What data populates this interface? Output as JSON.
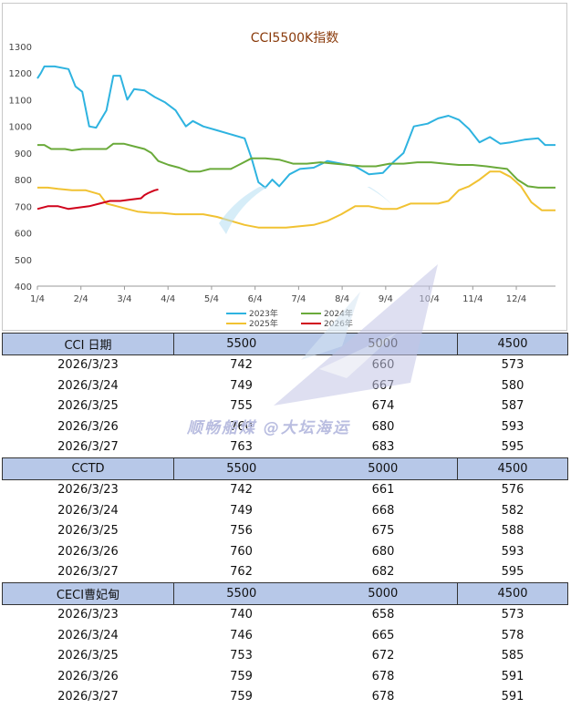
{
  "chart_data": {
    "type": "line",
    "title": "CCI5500K指数",
    "ylim": [
      400,
      1300
    ],
    "yticks": [
      400,
      500,
      600,
      700,
      800,
      900,
      1000,
      1100,
      1200,
      1300
    ],
    "xticks": [
      "1/4",
      "2/4",
      "3/4",
      "4/4",
      "5/4",
      "6/4",
      "7/4",
      "8/4",
      "9/4",
      "10/4",
      "11/4",
      "12/4"
    ],
    "legend_position": "bottom",
    "series": [
      {
        "name": "2023年",
        "color": "#2eb3e0",
        "points": [
          [
            0,
            1180
          ],
          [
            2,
            1200
          ],
          [
            4,
            1225
          ],
          [
            10,
            1225
          ],
          [
            18,
            1215
          ],
          [
            22,
            1150
          ],
          [
            26,
            1130
          ],
          [
            30,
            1000
          ],
          [
            34,
            995
          ],
          [
            40,
            1060
          ],
          [
            44,
            1190
          ],
          [
            48,
            1190
          ],
          [
            52,
            1100
          ],
          [
            56,
            1140
          ],
          [
            62,
            1135
          ],
          [
            68,
            1110
          ],
          [
            74,
            1090
          ],
          [
            80,
            1060
          ],
          [
            86,
            1000
          ],
          [
            90,
            1020
          ],
          [
            96,
            1000
          ],
          [
            104,
            985
          ],
          [
            112,
            970
          ],
          [
            120,
            955
          ],
          [
            124,
            880
          ],
          [
            128,
            790
          ],
          [
            132,
            770
          ],
          [
            136,
            800
          ],
          [
            140,
            775
          ],
          [
            146,
            820
          ],
          [
            152,
            840
          ],
          [
            160,
            845
          ],
          [
            168,
            870
          ],
          [
            176,
            860
          ],
          [
            184,
            850
          ],
          [
            192,
            820
          ],
          [
            200,
            825
          ],
          [
            206,
            865
          ],
          [
            212,
            900
          ],
          [
            218,
            1000
          ],
          [
            226,
            1010
          ],
          [
            232,
            1030
          ],
          [
            238,
            1040
          ],
          [
            244,
            1025
          ],
          [
            250,
            990
          ],
          [
            256,
            940
          ],
          [
            262,
            960
          ],
          [
            268,
            935
          ],
          [
            274,
            940
          ],
          [
            282,
            950
          ],
          [
            290,
            955
          ],
          [
            294,
            930
          ],
          [
            300,
            930
          ]
        ]
      },
      {
        "name": "2024年",
        "color": "#6aaa3a",
        "points": [
          [
            0,
            930
          ],
          [
            4,
            930
          ],
          [
            8,
            915
          ],
          [
            16,
            915
          ],
          [
            20,
            910
          ],
          [
            26,
            915
          ],
          [
            34,
            915
          ],
          [
            40,
            915
          ],
          [
            44,
            935
          ],
          [
            50,
            935
          ],
          [
            56,
            925
          ],
          [
            62,
            915
          ],
          [
            66,
            900
          ],
          [
            70,
            870
          ],
          [
            76,
            855
          ],
          [
            82,
            845
          ],
          [
            88,
            830
          ],
          [
            94,
            830
          ],
          [
            100,
            840
          ],
          [
            106,
            840
          ],
          [
            112,
            840
          ],
          [
            118,
            860
          ],
          [
            124,
            880
          ],
          [
            132,
            880
          ],
          [
            140,
            875
          ],
          [
            148,
            860
          ],
          [
            156,
            860
          ],
          [
            164,
            865
          ],
          [
            172,
            860
          ],
          [
            180,
            855
          ],
          [
            188,
            850
          ],
          [
            196,
            850
          ],
          [
            204,
            860
          ],
          [
            212,
            860
          ],
          [
            220,
            865
          ],
          [
            228,
            865
          ],
          [
            236,
            860
          ],
          [
            244,
            855
          ],
          [
            252,
            855
          ],
          [
            260,
            850
          ],
          [
            266,
            845
          ],
          [
            272,
            840
          ],
          [
            278,
            800
          ],
          [
            284,
            775
          ],
          [
            290,
            770
          ],
          [
            296,
            770
          ],
          [
            300,
            770
          ]
        ]
      },
      {
        "name": "2025年",
        "color": "#f1c232",
        "points": [
          [
            0,
            770
          ],
          [
            6,
            770
          ],
          [
            12,
            765
          ],
          [
            20,
            760
          ],
          [
            28,
            760
          ],
          [
            36,
            745
          ],
          [
            40,
            710
          ],
          [
            46,
            700
          ],
          [
            52,
            690
          ],
          [
            58,
            680
          ],
          [
            66,
            675
          ],
          [
            72,
            675
          ],
          [
            80,
            670
          ],
          [
            88,
            670
          ],
          [
            96,
            670
          ],
          [
            104,
            660
          ],
          [
            112,
            645
          ],
          [
            120,
            630
          ],
          [
            128,
            620
          ],
          [
            136,
            620
          ],
          [
            144,
            620
          ],
          [
            152,
            625
          ],
          [
            160,
            630
          ],
          [
            168,
            645
          ],
          [
            176,
            670
          ],
          [
            184,
            700
          ],
          [
            192,
            700
          ],
          [
            200,
            690
          ],
          [
            208,
            690
          ],
          [
            216,
            710
          ],
          [
            224,
            710
          ],
          [
            232,
            710
          ],
          [
            238,
            720
          ],
          [
            244,
            760
          ],
          [
            250,
            775
          ],
          [
            256,
            800
          ],
          [
            262,
            830
          ],
          [
            268,
            830
          ],
          [
            274,
            810
          ],
          [
            280,
            775
          ],
          [
            286,
            715
          ],
          [
            292,
            685
          ],
          [
            300,
            685
          ]
        ]
      },
      {
        "name": "2026年",
        "color": "#d0021b",
        "points": [
          [
            0,
            690
          ],
          [
            6,
            700
          ],
          [
            12,
            700
          ],
          [
            18,
            690
          ],
          [
            24,
            695
          ],
          [
            30,
            700
          ],
          [
            36,
            710
          ],
          [
            42,
            720
          ],
          [
            48,
            720
          ],
          [
            54,
            725
          ],
          [
            60,
            730
          ],
          [
            62,
            742
          ],
          [
            64,
            749
          ],
          [
            66,
            755
          ],
          [
            68,
            760
          ],
          [
            70,
            763
          ]
        ]
      }
    ]
  },
  "tables": [
    {
      "header": [
        "CCI 日期",
        "5500",
        "5000",
        "4500"
      ],
      "rows": [
        [
          "2026/3/23",
          "742",
          "660",
          "573"
        ],
        [
          "2026/3/24",
          "749",
          "667",
          "580"
        ],
        [
          "2026/3/25",
          "755",
          "674",
          "587"
        ],
        [
          "2026/3/26",
          "760",
          "680",
          "593"
        ],
        [
          "2026/3/27",
          "763",
          "683",
          "595"
        ]
      ]
    },
    {
      "header": [
        "CCTD",
        "5500",
        "5000",
        "4500"
      ],
      "rows": [
        [
          "2026/3/23",
          "742",
          "661",
          "576"
        ],
        [
          "2026/3/24",
          "749",
          "668",
          "582"
        ],
        [
          "2026/3/25",
          "756",
          "675",
          "588"
        ],
        [
          "2026/3/26",
          "760",
          "680",
          "593"
        ],
        [
          "2026/3/27",
          "762",
          "682",
          "595"
        ]
      ]
    },
    {
      "header": [
        "CECI曹妃甸",
        "5500",
        "5000",
        "4500"
      ],
      "rows": [
        [
          "2026/3/23",
          "740",
          "658",
          "573"
        ],
        [
          "2026/3/24",
          "746",
          "665",
          "578"
        ],
        [
          "2026/3/25",
          "753",
          "672",
          "585"
        ],
        [
          "2026/3/26",
          "759",
          "678",
          "591"
        ],
        [
          "2026/3/27",
          "759",
          "678",
          "591"
        ]
      ]
    }
  ],
  "watermark_text": "顺畅船煤 @大坛海运"
}
